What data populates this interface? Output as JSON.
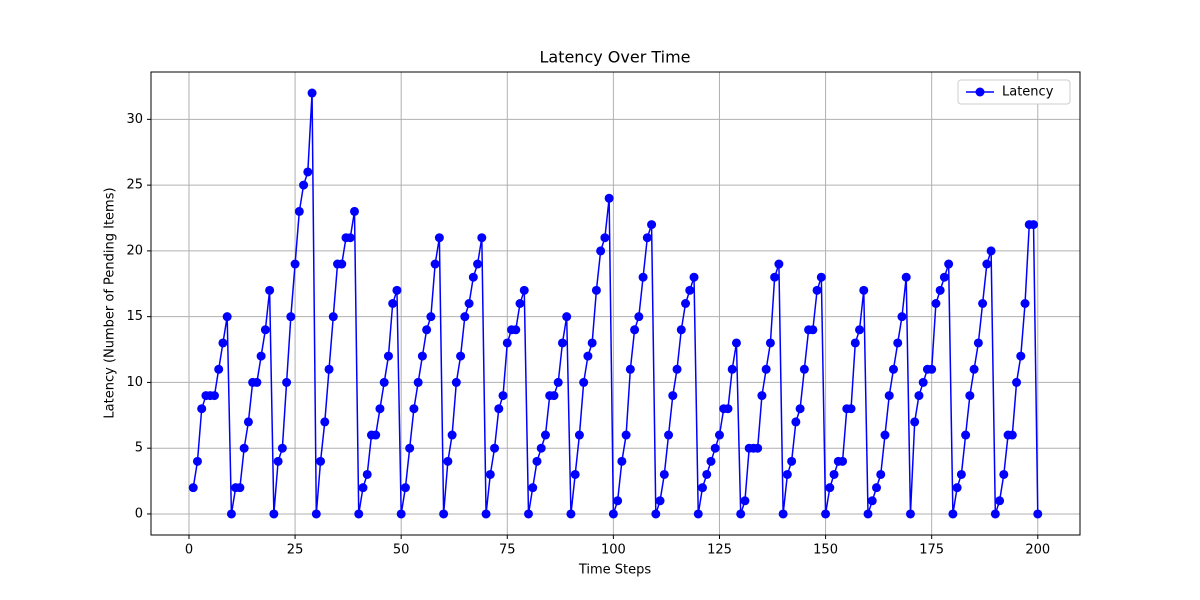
{
  "chart_data": {
    "type": "line",
    "title": "Latency Over Time",
    "x_label": "Time Steps",
    "y_label": "Latency (Number of Pending Items)",
    "x": [
      1,
      2,
      3,
      4,
      5,
      6,
      7,
      8,
      9,
      10,
      11,
      12,
      13,
      14,
      15,
      16,
      17,
      18,
      19,
      20,
      21,
      22,
      23,
      24,
      25,
      26,
      27,
      28,
      29,
      30,
      31,
      32,
      33,
      34,
      35,
      36,
      37,
      38,
      39,
      40,
      41,
      42,
      43,
      44,
      45,
      46,
      47,
      48,
      49,
      50,
      51,
      52,
      53,
      54,
      55,
      56,
      57,
      58,
      59,
      60,
      61,
      62,
      63,
      64,
      65,
      66,
      67,
      68,
      69,
      70,
      71,
      72,
      73,
      74,
      75,
      76,
      77,
      78,
      79,
      80,
      81,
      82,
      83,
      84,
      85,
      86,
      87,
      88,
      89,
      90,
      91,
      92,
      93,
      94,
      95,
      96,
      97,
      98,
      99,
      100,
      101,
      102,
      103,
      104,
      105,
      106,
      107,
      108,
      109,
      110,
      111,
      112,
      113,
      114,
      115,
      116,
      117,
      118,
      119,
      120,
      121,
      122,
      123,
      124,
      125,
      126,
      127,
      128,
      129,
      130,
      131,
      132,
      133,
      134,
      135,
      136,
      137,
      138,
      139,
      140,
      141,
      142,
      143,
      144,
      145,
      146,
      147,
      148,
      149,
      150,
      151,
      152,
      153,
      154,
      155,
      156,
      157,
      158,
      159,
      160,
      161,
      162,
      163,
      164,
      165,
      166,
      167,
      168,
      169,
      170,
      171,
      172,
      173,
      174,
      175,
      176,
      177,
      178,
      179,
      180,
      181,
      182,
      183,
      184,
      185,
      186,
      187,
      188,
      189,
      190,
      191,
      192,
      193,
      194,
      195,
      196,
      197,
      198,
      199,
      200
    ],
    "series": [
      {
        "name": "Latency",
        "color": "#0000ff",
        "values": [
          2,
          4,
          8,
          9,
          9,
          9,
          11,
          13,
          15,
          0,
          2,
          2,
          5,
          7,
          10,
          10,
          12,
          14,
          17,
          0,
          4,
          5,
          10,
          15,
          19,
          23,
          25,
          26,
          32,
          0,
          4,
          7,
          11,
          15,
          19,
          19,
          21,
          21,
          23,
          0,
          2,
          3,
          6,
          6,
          8,
          10,
          12,
          16,
          17,
          0,
          2,
          5,
          8,
          10,
          12,
          14,
          15,
          19,
          21,
          0,
          4,
          6,
          10,
          12,
          15,
          16,
          18,
          19,
          21,
          0,
          3,
          5,
          8,
          9,
          13,
          14,
          14,
          16,
          17,
          0,
          2,
          4,
          5,
          6,
          9,
          9,
          10,
          13,
          15,
          0,
          3,
          6,
          10,
          12,
          13,
          17,
          20,
          21,
          24,
          0,
          1,
          4,
          6,
          11,
          14,
          15,
          18,
          21,
          22,
          0,
          1,
          3,
          6,
          9,
          11,
          14,
          16,
          17,
          18,
          0,
          2,
          3,
          4,
          5,
          6,
          8,
          8,
          11,
          13,
          0,
          1,
          5,
          5,
          5,
          9,
          11,
          13,
          18,
          19,
          0,
          3,
          4,
          7,
          8,
          11,
          14,
          14,
          17,
          18,
          0,
          2,
          3,
          4,
          4,
          8,
          8,
          13,
          14,
          17,
          0,
          1,
          2,
          3,
          6,
          9,
          11,
          13,
          15,
          18,
          0,
          7,
          9,
          10,
          11,
          11,
          16,
          17,
          18,
          19,
          0,
          2,
          3,
          6,
          9,
          11,
          13,
          16,
          19,
          20,
          0,
          1,
          3,
          6,
          6,
          10,
          12,
          16,
          22,
          22,
          0
        ]
      }
    ],
    "xlim": [
      -8.95,
      209.95
    ],
    "ylim": [
      -1.6,
      33.6
    ],
    "xticks": [
      0,
      25,
      50,
      75,
      100,
      125,
      150,
      175,
      200
    ],
    "yticks": [
      0,
      5,
      10,
      15,
      20,
      25,
      30
    ],
    "grid": true,
    "legend": "upper right"
  }
}
